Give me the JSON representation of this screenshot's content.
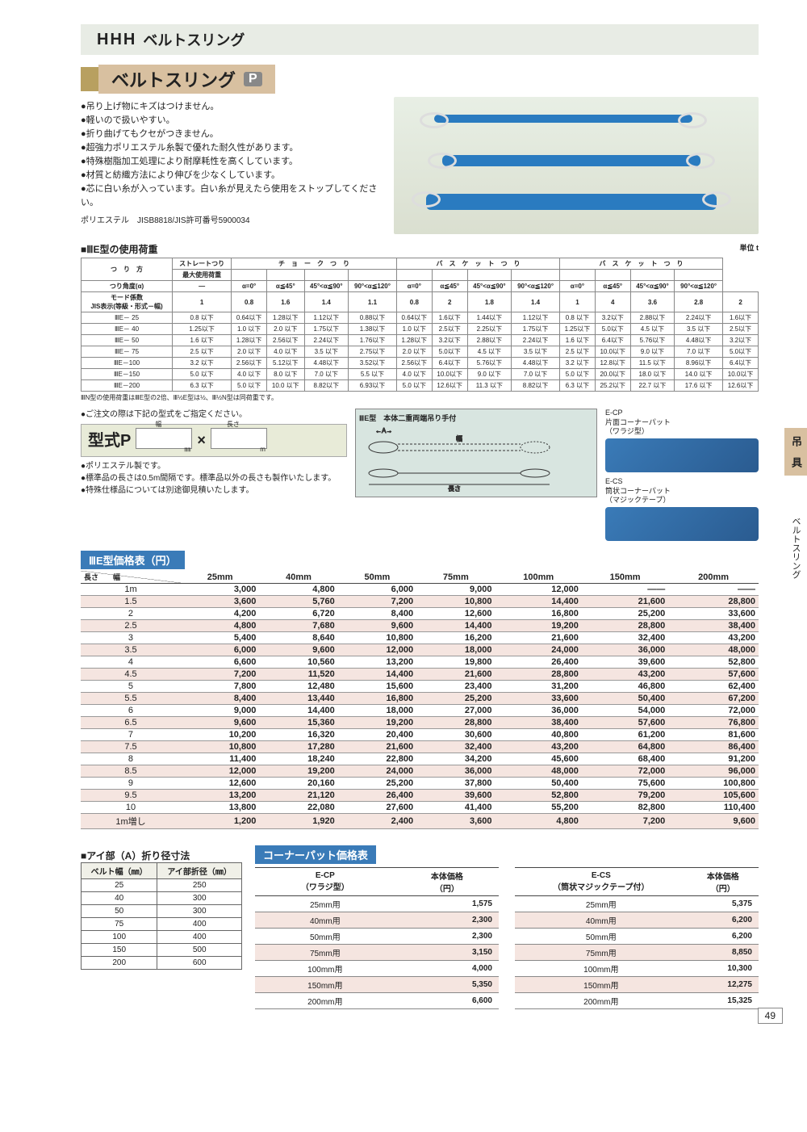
{
  "header": {
    "logo": "HHH",
    "title": "ベルトスリング"
  },
  "product": {
    "title": "ベルトスリング",
    "badge": "P"
  },
  "features": [
    "●吊り上げ物にキズはつけません。",
    "●軽いので扱いやすい。",
    "●折り曲げてもクセがつきません。",
    "●超強力ポリエステル糸製で優れた耐久性があります。",
    "●特殊樹脂加工処理により耐摩耗性を高くしています。",
    "●材質と紡織方法により伸びを少なくしています。",
    "●芯に白い糸が入っています。白い糸が見えたら使用をストップしてください。"
  ],
  "spec_line": "ポリエステル　JISB8818/JIS許可番号5900034",
  "load_heading": "■ⅢE型の使用荷重",
  "load_unit": "単位 t",
  "load_cat_row": [
    "つ　り　方",
    "ストレートつり",
    "チ　ョ　ー　ク　つ　り",
    "バ　ス　ケ　ッ　ト　つ　り"
  ],
  "load_alpha_label": "つり角度(α)",
  "load_mode_label": "モード係数\nJIS表示(等級・形式－幅)",
  "load_max_label": "最大使用荷重",
  "load_cols": [
    "—",
    "α=0°",
    "α≦45°",
    "45°<α≦90°",
    "90°<α≦120°",
    "α=0°",
    "α≦45°",
    "45°<α≦90°",
    "90°<α≦120°",
    "α=0°",
    "α≦45°",
    "45°<α≦90°",
    "90°<α≦120°"
  ],
  "load_modes": [
    "1",
    "0.8",
    "1.6",
    "1.4",
    "1.1",
    "0.8",
    "2",
    "1.8",
    "1.4",
    "1",
    "4",
    "3.6",
    "2.8",
    "2"
  ],
  "load_rows": [
    [
      "ⅢE－ 25",
      "0.8 以下",
      "0.64以下",
      "1.28以下",
      "1.12以下",
      "0.88以下",
      "0.64以下",
      "1.6以下",
      "1.44以下",
      "1.12以下",
      "0.8 以下",
      "3.2以下",
      "2.88以下",
      "2.24以下",
      "1.6以下"
    ],
    [
      "ⅢE－ 40",
      "1.25以下",
      "1.0 以下",
      "2.0 以下",
      "1.75以下",
      "1.38以下",
      "1.0 以下",
      "2.5以下",
      "2.25以下",
      "1.75以下",
      "1.25以下",
      "5.0以下",
      "4.5 以下",
      "3.5 以下",
      "2.5以下"
    ],
    [
      "ⅢE－ 50",
      "1.6 以下",
      "1.28以下",
      "2.56以下",
      "2.24以下",
      "1.76以下",
      "1.28以下",
      "3.2以下",
      "2.88以下",
      "2.24以下",
      "1.6 以下",
      "6.4以下",
      "5.76以下",
      "4.48以下",
      "3.2以下"
    ],
    [
      "ⅢE－ 75",
      "2.5 以下",
      "2.0 以下",
      "4.0 以下",
      "3.5 以下",
      "2.75以下",
      "2.0 以下",
      "5.0以下",
      "4.5 以下",
      "3.5 以下",
      "2.5 以下",
      "10.0以下",
      "9.0 以下",
      "7.0 以下",
      "5.0以下"
    ],
    [
      "ⅢE－100",
      "3.2 以下",
      "2.56以下",
      "5.12以下",
      "4.48以下",
      "3.52以下",
      "2.56以下",
      "6.4以下",
      "5.76以下",
      "4.48以下",
      "3.2 以下",
      "12.8以下",
      "11.5 以下",
      "8.96以下",
      "6.4以下"
    ],
    [
      "ⅢE－150",
      "5.0 以下",
      "4.0 以下",
      "8.0 以下",
      "7.0 以下",
      "5.5 以下",
      "4.0 以下",
      "10.0以下",
      "9.0 以下",
      "7.0 以下",
      "5.0 以下",
      "20.0以下",
      "18.0 以下",
      "14.0 以下",
      "10.0以下"
    ],
    [
      "ⅢE－200",
      "6.3 以下",
      "5.0 以下",
      "10.0 以下",
      "8.82以下",
      "6.93以下",
      "5.0 以下",
      "12.6以下",
      "11.3 以下",
      "8.82以下",
      "6.3 以下",
      "25.2以下",
      "22.7 以下",
      "17.6 以下",
      "12.6以下"
    ]
  ],
  "load_foot": "ⅢN型の使用荷重はⅢE型の2倍、Ⅲ½E型は½、Ⅲ½N型は同荷重です。",
  "order_note": "●ご注文の際は下記の型式をご指定ください。",
  "model": {
    "label": "型式P",
    "w": "幅",
    "wunit": "㎜",
    "x": "×",
    "l": "長さ",
    "lunit": "m"
  },
  "mid_notes": [
    "●ポリエステル製です。",
    "●標準品の長さは0.5m間隔です。標準品以外の長さも製作いたします。",
    "●特殊仕様品については別途御見積いたします。"
  ],
  "diagram_title": "ⅢE型　本体二重両端吊り手付",
  "diagram_a": "A",
  "diagram_w": "幅",
  "diagram_len": "長さ",
  "pads": {
    "ecp_title": "E-CP\n片面コーナーパット\n（ワラジ型）",
    "ecs_title": "E-CS\n筒状コーナーパット\n（マジックテープ）"
  },
  "price_heading": "ⅢE型価格表（円）",
  "price_cols": [
    "25mm",
    "40mm",
    "50mm",
    "75mm",
    "100mm",
    "150mm",
    "200mm"
  ],
  "price_length_hdr": "長さ",
  "price_width_hdr": "幅",
  "price_rows": [
    [
      "1m",
      "3,000",
      "4,800",
      "6,000",
      "9,000",
      "12,000",
      "——",
      "——"
    ],
    [
      "1.5",
      "3,600",
      "5,760",
      "7,200",
      "10,800",
      "14,400",
      "21,600",
      "28,800"
    ],
    [
      "2",
      "4,200",
      "6,720",
      "8,400",
      "12,600",
      "16,800",
      "25,200",
      "33,600"
    ],
    [
      "2.5",
      "4,800",
      "7,680",
      "9,600",
      "14,400",
      "19,200",
      "28,800",
      "38,400"
    ],
    [
      "3",
      "5,400",
      "8,640",
      "10,800",
      "16,200",
      "21,600",
      "32,400",
      "43,200"
    ],
    [
      "3.5",
      "6,000",
      "9,600",
      "12,000",
      "18,000",
      "24,000",
      "36,000",
      "48,000"
    ],
    [
      "4",
      "6,600",
      "10,560",
      "13,200",
      "19,800",
      "26,400",
      "39,600",
      "52,800"
    ],
    [
      "4.5",
      "7,200",
      "11,520",
      "14,400",
      "21,600",
      "28,800",
      "43,200",
      "57,600"
    ],
    [
      "5",
      "7,800",
      "12,480",
      "15,600",
      "23,400",
      "31,200",
      "46,800",
      "62,400"
    ],
    [
      "5.5",
      "8,400",
      "13,440",
      "16,800",
      "25,200",
      "33,600",
      "50,400",
      "67,200"
    ],
    [
      "6",
      "9,000",
      "14,400",
      "18,000",
      "27,000",
      "36,000",
      "54,000",
      "72,000"
    ],
    [
      "6.5",
      "9,600",
      "15,360",
      "19,200",
      "28,800",
      "38,400",
      "57,600",
      "76,800"
    ],
    [
      "7",
      "10,200",
      "16,320",
      "20,400",
      "30,600",
      "40,800",
      "61,200",
      "81,600"
    ],
    [
      "7.5",
      "10,800",
      "17,280",
      "21,600",
      "32,400",
      "43,200",
      "64,800",
      "86,400"
    ],
    [
      "8",
      "11,400",
      "18,240",
      "22,800",
      "34,200",
      "45,600",
      "68,400",
      "91,200"
    ],
    [
      "8.5",
      "12,000",
      "19,200",
      "24,000",
      "36,000",
      "48,000",
      "72,000",
      "96,000"
    ],
    [
      "9",
      "12,600",
      "20,160",
      "25,200",
      "37,800",
      "50,400",
      "75,600",
      "100,800"
    ],
    [
      "9.5",
      "13,200",
      "21,120",
      "26,400",
      "39,600",
      "52,800",
      "79,200",
      "105,600"
    ],
    [
      "10",
      "13,800",
      "22,080",
      "27,600",
      "41,400",
      "55,200",
      "82,800",
      "110,400"
    ],
    [
      "1m増し",
      "1,200",
      "1,920",
      "2,400",
      "3,600",
      "4,800",
      "7,200",
      "9,600"
    ]
  ],
  "eye_heading": "■アイ部（A）折り径寸法",
  "eye_cols": [
    "ベルト幅（㎜）",
    "アイ部折径（㎜）"
  ],
  "eye_rows": [
    [
      "25",
      "250"
    ],
    [
      "40",
      "300"
    ],
    [
      "50",
      "300"
    ],
    [
      "75",
      "400"
    ],
    [
      "100",
      "400"
    ],
    [
      "150",
      "500"
    ],
    [
      "200",
      "600"
    ]
  ],
  "corner_heading": "コーナーパット価格表",
  "corner_ecp_cols": [
    "E-CP\n（ワラジ型）",
    "本体価格\n（円）"
  ],
  "corner_ecs_cols": [
    "E-CS\n（筒状マジックテープ付）",
    "本体価格\n（円）"
  ],
  "corner_ecp_rows": [
    [
      "25mm用",
      "1,575"
    ],
    [
      "40mm用",
      "2,300"
    ],
    [
      "50mm用",
      "2,300"
    ],
    [
      "75mm用",
      "3,150"
    ],
    [
      "100mm用",
      "4,000"
    ],
    [
      "150mm用",
      "5,350"
    ],
    [
      "200mm用",
      "6,600"
    ]
  ],
  "corner_ecs_rows": [
    [
      "25mm用",
      "5,375"
    ],
    [
      "40mm用",
      "6,200"
    ],
    [
      "50mm用",
      "6,200"
    ],
    [
      "75mm用",
      "8,850"
    ],
    [
      "100mm用",
      "10,300"
    ],
    [
      "150mm用",
      "12,275"
    ],
    [
      "200mm用",
      "15,325"
    ]
  ],
  "side_tab": "吊　具",
  "side_txt": "ベルトスリング",
  "page_num": "49"
}
